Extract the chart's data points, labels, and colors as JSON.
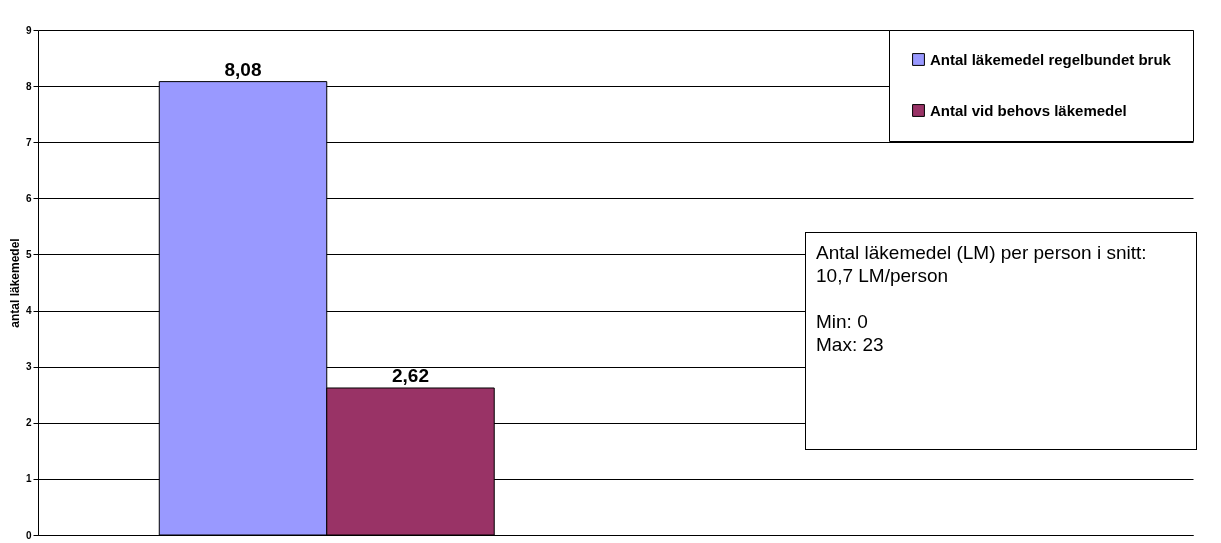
{
  "chart_data": {
    "type": "bar",
    "categories": [
      null
    ],
    "series": [
      {
        "name": "Antal läkemedel regelbundet bruk",
        "color": "#9999ff",
        "values": [
          8.08
        ],
        "value_labels": [
          "8,08"
        ]
      },
      {
        "name": "Antal vid behovs läkemedel",
        "color": "#993366",
        "values": [
          2.62
        ],
        "value_labels": [
          "2,62"
        ]
      }
    ],
    "ylabel": "antal läkemedel",
    "ylim": [
      0,
      9
    ],
    "yticks": [
      0,
      1,
      2,
      3,
      4,
      5,
      6,
      7,
      8,
      9
    ],
    "grid": "y",
    "legend": "top right",
    "annotations": [
      "Antal läkemedel (LM) per person i snitt: 10,7 LM/person",
      "Min: 0",
      "Max: 23"
    ]
  }
}
